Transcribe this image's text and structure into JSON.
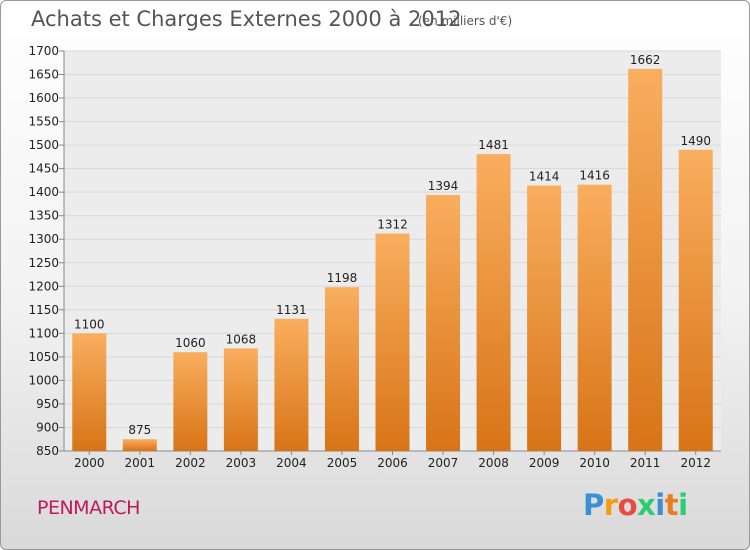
{
  "title": "Achats et Charges Externes 2000 à 2012",
  "unit_label": "(en milliers d'€)",
  "town": "PENMARCH",
  "logo": {
    "letters": [
      "P",
      "r",
      "o",
      "x",
      "i",
      "t",
      "i"
    ],
    "colors": [
      "#3a8fd6",
      "#f39c12",
      "#e74c3c",
      "#2ecc71",
      "#3a8fd6",
      "#e67e22",
      "#2ecc71"
    ]
  },
  "colors": {
    "bar_light": "#f9ae5e",
    "bar_dark": "#d87417",
    "grid": "#d8d8d8",
    "plot_bg": "#ececec",
    "town": "#c2185b"
  },
  "chart_data": {
    "type": "bar",
    "categories": [
      "2000",
      "2001",
      "2002",
      "2003",
      "2004",
      "2005",
      "2006",
      "2007",
      "2008",
      "2009",
      "2010",
      "2011",
      "2012"
    ],
    "values": [
      1100,
      875,
      1060,
      1068,
      1131,
      1198,
      1312,
      1394,
      1481,
      1414,
      1416,
      1662,
      1490
    ],
    "ylim": [
      850,
      1700
    ],
    "yticks": [
      850,
      900,
      950,
      1000,
      1050,
      1100,
      1150,
      1200,
      1250,
      1300,
      1350,
      1400,
      1450,
      1500,
      1550,
      1600,
      1650,
      1700
    ],
    "grid": true,
    "title": "Achats et Charges Externes 2000 à 2012",
    "xlabel": "",
    "ylabel": ""
  }
}
